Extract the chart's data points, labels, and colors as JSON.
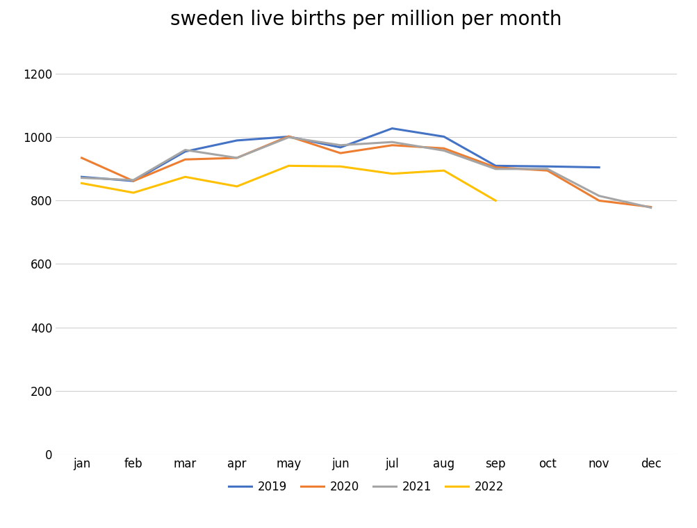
{
  "title": "sweden live births per million per month",
  "months": [
    "jan",
    "feb",
    "mar",
    "apr",
    "may",
    "jun",
    "jul",
    "aug",
    "sep",
    "oct",
    "nov",
    "dec"
  ],
  "series": {
    "2019": [
      875,
      862,
      955,
      990,
      1002,
      968,
      1028,
      1002,
      910,
      908,
      905,
      null
    ],
    "2020": [
      935,
      862,
      930,
      935,
      1003,
      950,
      975,
      965,
      905,
      895,
      800,
      780
    ],
    "2021": [
      872,
      865,
      960,
      935,
      1000,
      975,
      985,
      958,
      900,
      900,
      815,
      778
    ],
    "2022": [
      855,
      825,
      875,
      845,
      910,
      908,
      885,
      895,
      800,
      null,
      null,
      null
    ]
  },
  "colors": {
    "2019": "#4472C4",
    "2020": "#ED7D31",
    "2021": "#A5A5A5",
    "2022": "#FFC000"
  },
  "ylim": [
    0,
    1300
  ],
  "yticks": [
    0,
    200,
    400,
    600,
    800,
    1000,
    1200
  ],
  "background_color": "#ffffff",
  "grid_color": "#d0d0d0",
  "title_fontsize": 20,
  "tick_fontsize": 12,
  "legend_fontsize": 12,
  "line_width": 2.2
}
